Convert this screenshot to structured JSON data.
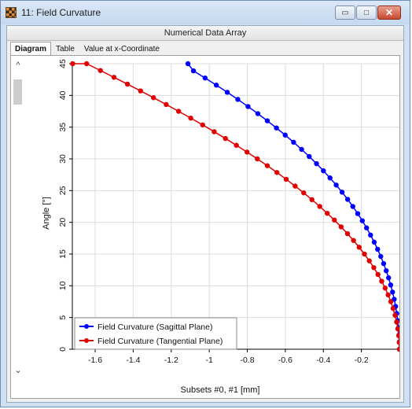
{
  "window": {
    "title": "11: Field Curvature",
    "minimize_glyph": "▭",
    "maximize_glyph": "□",
    "close_glyph": "✕"
  },
  "subheader": {
    "title": "Numerical Data Array"
  },
  "tabs": [
    {
      "label": "Diagram",
      "active": true
    },
    {
      "label": "Table",
      "active": false
    },
    {
      "label": "Value at x-Coordinate",
      "active": false
    }
  ],
  "scrollbar": {
    "up_glyph": "^",
    "down_glyph": "⌄"
  },
  "chart_data": {
    "type": "line",
    "xlabel": "Subsets #0, #1 [mm]",
    "ylabel": "Angle [°]",
    "xlim": [
      -1.72,
      0
    ],
    "ylim": [
      0,
      45
    ],
    "x_ticks": [
      -1.6,
      -1.4,
      -1.2,
      -1,
      -0.8,
      -0.6,
      -0.4,
      -0.2
    ],
    "y_ticks": [
      0,
      5,
      10,
      15,
      20,
      25,
      30,
      35,
      40,
      45
    ],
    "grid": true,
    "legend_position": "bottom-left",
    "series": [
      {
        "name": "Field Curvature (Sagittal Plane)",
        "color": "#0000ff",
        "x": [
          0,
          -0.0005,
          -0.0022,
          -0.005,
          -0.0089,
          -0.0139,
          -0.0201,
          -0.0275,
          -0.0361,
          -0.0459,
          -0.057,
          -0.0694,
          -0.0831,
          -0.0981,
          -0.1146,
          -0.1325,
          -0.1519,
          -0.1728,
          -0.1952,
          -0.2193,
          -0.245,
          -0.2724,
          -0.3015,
          -0.3324,
          -0.3651,
          -0.3997,
          -0.436,
          -0.4744,
          -0.5145,
          -0.5566,
          -0.6007,
          -0.6467,
          -0.6946,
          -0.7445,
          -0.7962,
          -0.8498,
          -0.9054,
          -0.9628,
          -1.022,
          -1.0831,
          -1.112
        ],
        "y": [
          0,
          1.125,
          2.25,
          3.375,
          4.5,
          5.625,
          6.75,
          7.875,
          9.0,
          10.125,
          11.25,
          12.375,
          13.5,
          14.625,
          15.75,
          16.875,
          18.0,
          19.125,
          20.25,
          21.375,
          22.5,
          23.625,
          24.75,
          25.875,
          27.0,
          28.125,
          29.25,
          30.375,
          31.5,
          32.625,
          33.75,
          34.875,
          36.0,
          37.125,
          38.25,
          39.375,
          40.5,
          41.625,
          42.75,
          43.875,
          45.0
        ]
      },
      {
        "name": "Field Curvature (Tangential Plane)",
        "color": "#e00000",
        "x": [
          0,
          -0.0009,
          -0.0037,
          -0.0083,
          -0.0147,
          -0.023,
          -0.0332,
          -0.0453,
          -0.0593,
          -0.0752,
          -0.0931,
          -0.1129,
          -0.1347,
          -0.1584,
          -0.1841,
          -0.2118,
          -0.2414,
          -0.273,
          -0.3065,
          -0.342,
          -0.3795,
          -0.4188,
          -0.4601,
          -0.5033,
          -0.5484,
          -0.5954,
          -0.6442,
          -0.6948,
          -0.7472,
          -0.8014,
          -0.8573,
          -0.9149,
          -0.9741,
          -1.0349,
          -1.0973,
          -1.1612,
          -1.2265,
          -1.2932,
          -1.3612,
          -1.4304,
          -1.5008,
          -1.5723,
          -1.6448,
          -1.7183
        ],
        "y": [
          0,
          1.071,
          2.143,
          3.214,
          4.286,
          5.357,
          6.429,
          7.5,
          8.571,
          9.643,
          10.714,
          11.786,
          12.857,
          13.929,
          15.0,
          16.071,
          17.143,
          18.214,
          19.286,
          20.357,
          21.429,
          22.5,
          23.571,
          24.643,
          25.714,
          26.786,
          27.857,
          28.929,
          30.0,
          31.071,
          32.143,
          33.214,
          34.286,
          35.357,
          36.429,
          37.5,
          38.571,
          39.643,
          40.714,
          41.786,
          42.857,
          43.929,
          45.0,
          45.0
        ]
      }
    ]
  }
}
